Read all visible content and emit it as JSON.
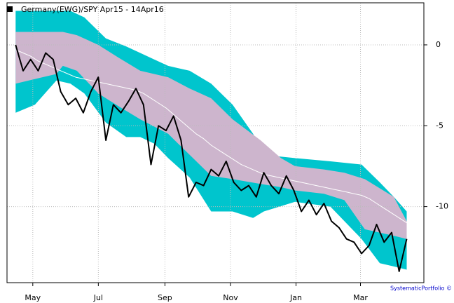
{
  "chart_data": {
    "type": "line",
    "grid": true,
    "xlim": [
      -8,
      380
    ],
    "ylim": [
      -14.7,
      2.6
    ],
    "yticks": [
      0,
      -5,
      -10
    ],
    "xticks": [
      {
        "value": 16,
        "label": "May"
      },
      {
        "value": 77,
        "label": "Jul"
      },
      {
        "value": 139,
        "label": "Sep"
      },
      {
        "value": 200,
        "label": "Nov"
      },
      {
        "value": 261,
        "label": "Jan"
      },
      {
        "value": 321,
        "label": "Mar"
      }
    ],
    "credit": "SystematicPortfolio ©",
    "bands": [
      {
        "color": "#00c5cd",
        "x": [
          0,
          18,
          38,
          51,
          64,
          84,
          103,
          116,
          129,
          142,
          162,
          182,
          202,
          221,
          231,
          260,
          293,
          322,
          339,
          352,
          364
        ],
        "upper": [
          2.1,
          2.1,
          2.1,
          2.1,
          1.7,
          0.4,
          -0.1,
          -0.5,
          -0.9,
          -1.3,
          -1.6,
          -2.4,
          -3.7,
          -5.5,
          -6.8,
          -7.0,
          -7.2,
          -7.4,
          -8.5,
          -9.4,
          -10.3
        ],
        "lower": [
          -4.2,
          -3.7,
          -2.2,
          -2.4,
          -3.0,
          -4.8,
          -5.7,
          -5.7,
          -6.1,
          -7.0,
          -8.2,
          -10.3,
          -10.3,
          -10.7,
          -10.3,
          -9.7,
          -10.0,
          -12.0,
          -13.5,
          -13.7,
          -13.9
        ]
      },
      {
        "color": "#cdb5cd",
        "x": [
          0,
          25,
          38,
          44,
          57,
          77,
          96,
          116,
          142,
          162,
          182,
          202,
          228,
          247,
          260,
          287,
          306,
          325,
          352,
          364
        ],
        "upper": [
          0.8,
          0.8,
          0.8,
          0.8,
          0.6,
          0.0,
          -0.8,
          -1.6,
          -2.0,
          -2.7,
          -3.3,
          -4.6,
          -5.9,
          -7.0,
          -7.5,
          -7.7,
          -7.9,
          -8.3,
          -9.4,
          -10.9
        ],
        "lower": [
          -2.4,
          -2.0,
          -1.8,
          -1.3,
          -1.6,
          -3.0,
          -3.8,
          -4.6,
          -5.5,
          -6.8,
          -8.1,
          -8.3,
          -8.6,
          -8.8,
          -9.0,
          -9.2,
          -9.6,
          -11.4,
          -11.8,
          -12.0
        ]
      }
    ],
    "series": [
      {
        "name": "Germany(EWG)/SPY Apr15 - 14Apr16",
        "color": "#000000",
        "width": 2,
        "x": [
          0,
          7,
          14,
          21,
          28,
          35,
          42,
          49,
          56,
          63,
          70,
          77,
          84,
          91,
          98,
          105,
          112,
          119,
          126,
          133,
          140,
          147,
          154,
          161,
          168,
          175,
          182,
          189,
          196,
          203,
          210,
          217,
          224,
          231,
          238,
          245,
          252,
          259,
          266,
          273,
          280,
          287,
          294,
          301,
          308,
          315,
          322,
          329,
          336,
          343,
          350,
          357,
          364
        ],
        "values": [
          0,
          -1.6,
          -0.9,
          -1.6,
          -0.5,
          -0.9,
          -2.9,
          -3.7,
          -3.3,
          -4.2,
          -2.9,
          -2.0,
          -5.9,
          -3.7,
          -4.2,
          -3.5,
          -2.7,
          -3.7,
          -7.4,
          -5.0,
          -5.3,
          -4.4,
          -5.9,
          -9.4,
          -8.5,
          -8.7,
          -7.7,
          -8.1,
          -7.2,
          -8.5,
          -9.0,
          -8.7,
          -9.4,
          -7.9,
          -8.7,
          -9.2,
          -8.1,
          -9.0,
          -10.3,
          -9.6,
          -10.5,
          -9.8,
          -10.9,
          -11.3,
          -12.0,
          -12.2,
          -12.9,
          -12.4,
          -11.1,
          -12.2,
          -11.6,
          -14.0,
          -12.0
        ]
      },
      {
        "color": "#ffffff",
        "width": 1,
        "x": [
          0,
          7,
          14,
          21,
          28,
          35,
          42,
          49,
          56,
          63,
          70,
          77,
          84,
          91,
          98,
          105,
          112,
          119,
          126,
          133,
          140,
          147,
          154,
          161,
          168,
          175,
          182,
          189,
          196,
          203,
          210,
          217,
          224,
          231,
          238,
          245,
          252,
          259,
          266,
          273,
          280,
          287,
          294,
          301,
          308,
          315,
          322,
          329,
          336,
          343,
          350,
          357,
          364
        ],
        "values": [
          -0.3,
          -0.5,
          -0.7,
          -1.0,
          -1.2,
          -1.4,
          -1.6,
          -1.8,
          -2.0,
          -2.1,
          -2.2,
          -2.3,
          -2.4,
          -2.5,
          -2.6,
          -2.7,
          -2.8,
          -3.0,
          -3.3,
          -3.6,
          -3.9,
          -4.3,
          -4.7,
          -5.1,
          -5.5,
          -5.8,
          -6.2,
          -6.5,
          -6.8,
          -7.1,
          -7.4,
          -7.6,
          -7.8,
          -8.0,
          -8.1,
          -8.2,
          -8.3,
          -8.4,
          -8.5,
          -8.6,
          -8.7,
          -8.8,
          -8.9,
          -9.0,
          -9.1,
          -9.2,
          -9.3,
          -9.5,
          -9.8,
          -10.1,
          -10.4,
          -10.7,
          -11.0
        ]
      }
    ]
  }
}
